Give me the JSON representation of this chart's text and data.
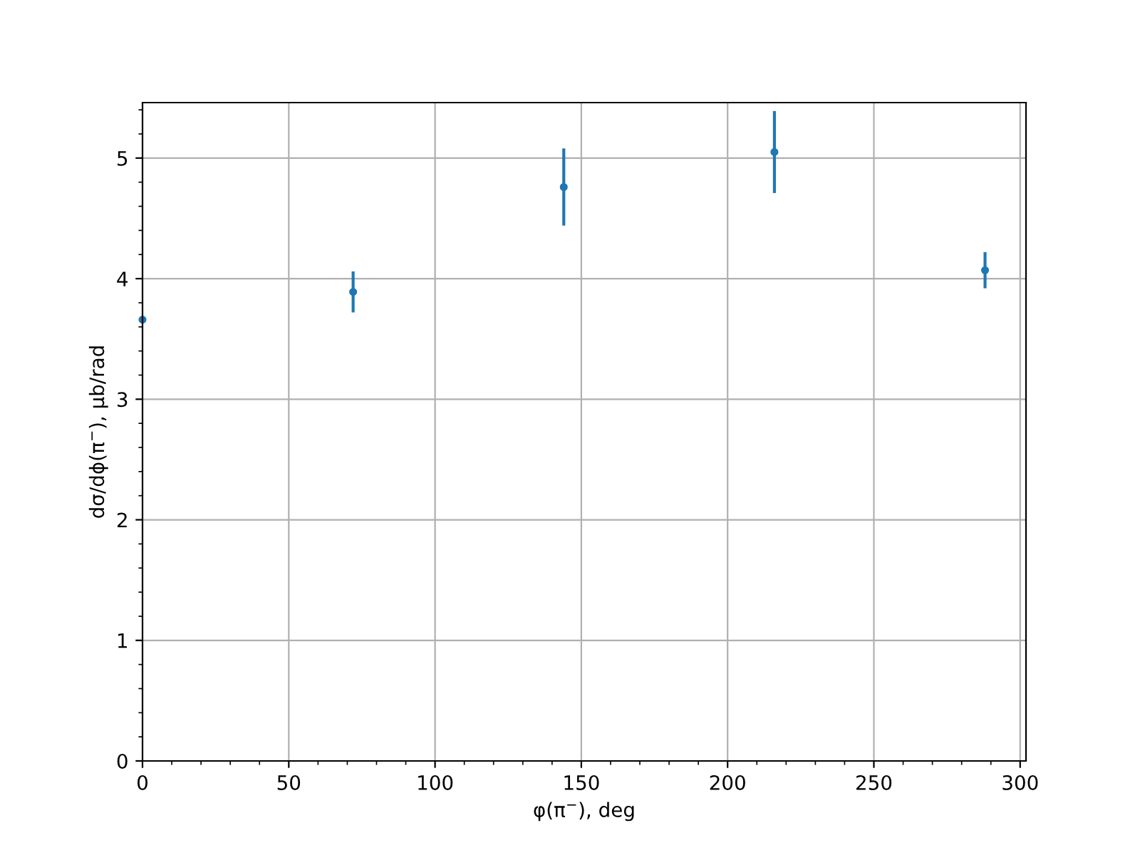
{
  "chart_data": {
    "type": "scatter",
    "xlabel": "φ(π$^{−}$), deg",
    "ylabel": "dσ/dϕ(π$^{−}$), μb/rad",
    "x": [
      0,
      72,
      144,
      216,
      288
    ],
    "series": [
      {
        "color": "#1f77b4",
        "values": [
          3.66,
          3.89,
          4.76,
          5.05,
          4.07
        ],
        "errors": [
          null,
          0.17,
          0.32,
          0.34,
          0.15
        ]
      }
    ],
    "xlim": [
      0,
      302
    ],
    "ylim": [
      0,
      5.46
    ],
    "xticks": [
      0,
      50,
      100,
      150,
      200,
      250,
      300
    ],
    "yticks": [
      0,
      1,
      2,
      3,
      4,
      5
    ],
    "grid": true,
    "marker": "circle"
  }
}
